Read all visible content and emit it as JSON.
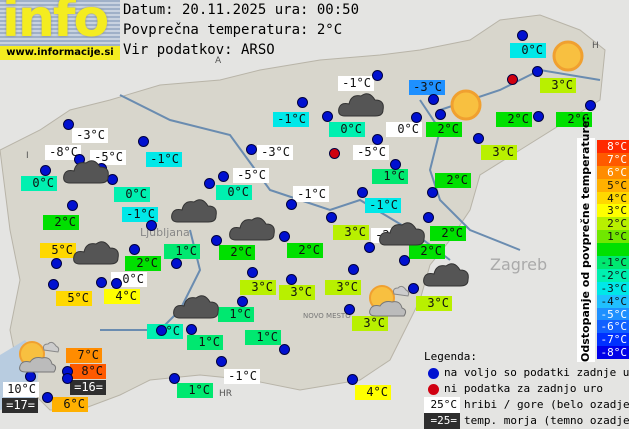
{
  "logo": {
    "text": "info",
    "url": "www.informacije.si"
  },
  "header": {
    "date_line": "Datum: 20.11.2025 ura: 00:50",
    "avg_line": "Povprečna temperatura: 2°C",
    "source_line": "Vir podatkov: ARSO"
  },
  "colors": {
    "8": "#ff2a00",
    "7": "#ff5a00",
    "6": "#ff8c00",
    "5": "#ffb000",
    "4": "#ffd800",
    "3": "#ffff00",
    "2": "#b8f000",
    "1": "#70e800",
    "0": "#00e000",
    "-1": "#00e870",
    "-2": "#00f0b0",
    "-3": "#00e8e8",
    "-4": "#20c0ff",
    "-5": "#1e90ff",
    "-6": "#1060ff",
    "-7": "#0030ff",
    "-8": "#0000e8",
    "hill": "#ffffff",
    "sea": "#2e2e2e"
  },
  "stations": [
    {
      "text": "0°C",
      "c": "-3"
    },
    {
      "text": "3°C",
      "c": "2"
    },
    {
      "text": "-3°C",
      "c": "-5"
    },
    {
      "text": "-1°C",
      "c": "hill"
    },
    {
      "text": "-1°C",
      "c": "-3"
    },
    {
      "text": "0°C",
      "c": "-2"
    },
    {
      "text": "0°C",
      "c": "hill"
    },
    {
      "text": "2°C",
      "c": "0"
    },
    {
      "text": "2°C",
      "c": "0"
    },
    {
      "text": "2°C",
      "c": "0"
    },
    {
      "text": "3°C",
      "c": "2"
    },
    {
      "text": "-5°C",
      "c": "hill"
    },
    {
      "text": "1°C",
      "c": "-1"
    },
    {
      "text": "2°C",
      "c": "0"
    },
    {
      "text": "-1°C",
      "c": "-3"
    },
    {
      "text": "-1°C",
      "c": "hill"
    },
    {
      "text": "3°C",
      "c": "2"
    },
    {
      "text": "-2°C",
      "c": "hill"
    },
    {
      "text": "2°C",
      "c": "0"
    },
    {
      "text": "2°C",
      "c": "0"
    },
    {
      "text": "3°C",
      "c": "2"
    },
    {
      "text": "3°C",
      "c": "2"
    },
    {
      "text": "3°C",
      "c": "2"
    },
    {
      "text": "4°C",
      "c": "3"
    },
    {
      "text": "-1°C",
      "c": "hill"
    },
    {
      "text": "1°C",
      "c": "-1"
    },
    {
      "text": "1°C",
      "c": "-1"
    },
    {
      "text": "1°C",
      "c": "-1"
    },
    {
      "text": "0°C",
      "c": "-2"
    },
    {
      "text": "1°C",
      "c": "-1"
    },
    {
      "text": "3°C",
      "c": "2"
    },
    {
      "text": "3°C",
      "c": "2"
    },
    {
      "text": "2°C",
      "c": "0"
    },
    {
      "text": "2°C",
      "c": "0"
    },
    {
      "text": "1°C",
      "c": "-1"
    },
    {
      "text": "2°C",
      "c": "0"
    },
    {
      "text": "0°C",
      "c": "hill"
    },
    {
      "text": "4°C",
      "c": "3"
    },
    {
      "text": "5°C",
      "c": "4"
    },
    {
      "text": "5°C",
      "c": "4"
    },
    {
      "text": "7°C",
      "c": "6"
    },
    {
      "text": "8°C",
      "c": "7"
    },
    {
      "text": "=16=",
      "c": "sea"
    },
    {
      "text": "10°C",
      "c": "hill"
    },
    {
      "text": "=17=",
      "c": "sea"
    },
    {
      "text": "6°C",
      "c": "5"
    },
    {
      "text": "-3°C",
      "c": "hill"
    },
    {
      "text": "-8°C",
      "c": "hill"
    },
    {
      "text": "-5°C",
      "c": "hill"
    },
    {
      "text": "0°C",
      "c": "-2"
    },
    {
      "text": "0°C",
      "c": "-2"
    },
    {
      "text": "-1°C",
      "c": "-3"
    },
    {
      "text": "-1°C",
      "c": "-3"
    },
    {
      "text": "2°C",
      "c": "0"
    },
    {
      "text": "-5°C",
      "c": "hill"
    },
    {
      "text": "0°C",
      "c": "-2"
    },
    {
      "text": "-3°C",
      "c": "hill"
    },
    {
      "text": "-1°C",
      "c": "hill"
    }
  ],
  "weather_icons": [
    "sun",
    "sun",
    "cloud",
    "cloud",
    "cloud",
    "cloud",
    "cloud",
    "cloud",
    "sun-cloud",
    "cloud",
    "sun-cloud",
    "cloud"
  ],
  "scale": {
    "title": "Odstopanje od povprečne temperature:",
    "labels": [
      "8°C",
      "7°C",
      "6°C",
      "5°C",
      "4°C",
      "3°C",
      "2°C",
      "1°C",
      "",
      "-1°C",
      "-2°C",
      "-3°C",
      "-4°C",
      "-5°C",
      "-6°C",
      "-7°C",
      "-8°C"
    ]
  },
  "legend": {
    "title": "Legenda:",
    "available": "na voljo so podatki zadnje ure",
    "missing": "ni podatka za zadnjo uro",
    "hill_sample": "25°C",
    "hill_text": "hribi / gore (belo ozadje)",
    "sea_sample": "=25=",
    "sea_text": "temp. morja (temno ozadje)"
  },
  "map_labels": {
    "ljubljana": "Ljubljana",
    "zagreb": "Zagreb",
    "novo_mesto": "NOVO MESTO",
    "a": "A",
    "i": "I",
    "h": "H",
    "hr": "HR"
  }
}
